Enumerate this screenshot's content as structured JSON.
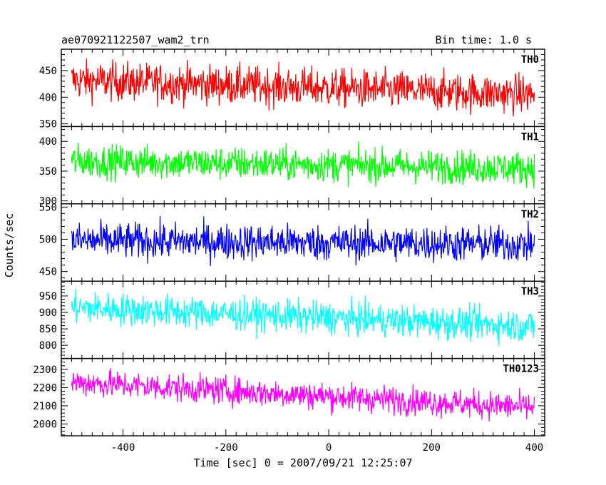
{
  "chart_data": {
    "type": "line",
    "title": "ae070921122507_wam2_trn",
    "bin_time": "Bin time: 1.0 s",
    "xlabel": "Time [sec] 0 = 2007/09/21 12:25:07",
    "ylabel": "Counts/sec",
    "xlim": [
      -520,
      420
    ],
    "xticks": [
      -400,
      -200,
      0,
      200,
      400
    ],
    "x_range": [
      -500,
      400
    ],
    "grid": false,
    "panels": [
      {
        "name": "TH0",
        "color": "#ff0000",
        "ylim": [
          345,
          490
        ],
        "yticks": [
          350,
          400,
          450
        ],
        "mean_start": 432,
        "mean_end": 405,
        "spread": 26
      },
      {
        "name": "TH1",
        "color": "#00ff00",
        "ylim": [
          295,
          425
        ],
        "yticks": [
          300,
          350,
          400
        ],
        "mean_start": 367,
        "mean_end": 355,
        "spread": 20
      },
      {
        "name": "TH2",
        "color": "#0000ff",
        "ylim": [
          435,
          555
        ],
        "yticks": [
          450,
          500,
          550
        ],
        "mean_start": 498,
        "mean_end": 492,
        "spread": 20
      },
      {
        "name": "TH3",
        "color": "#00ffff",
        "ylim": [
          760,
          995
        ],
        "yticks": [
          800,
          850,
          900,
          950
        ],
        "mean_start": 915,
        "mean_end": 858,
        "spread": 35
      },
      {
        "name": "TH0123",
        "color": "#ff00ff",
        "ylim": [
          1935,
          2360
        ],
        "yticks": [
          2000,
          2100,
          2200,
          2300
        ],
        "mean_start": 2230,
        "mean_end": 2090,
        "spread": 55
      }
    ]
  }
}
